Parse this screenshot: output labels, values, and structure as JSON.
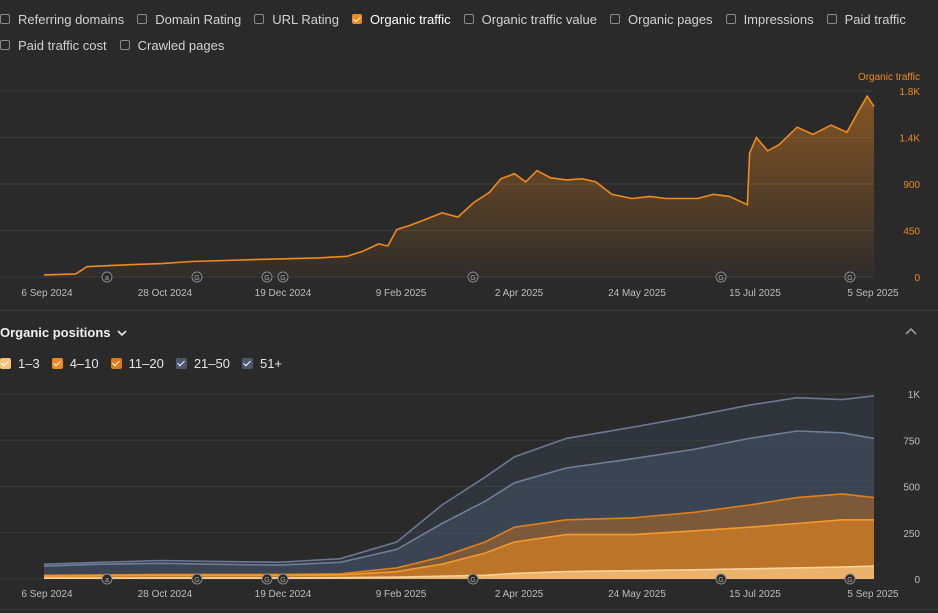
{
  "metrics": {
    "row1": [
      {
        "label": "Referring domains",
        "checked": false,
        "name": "referring-domains"
      },
      {
        "label": "Domain Rating",
        "checked": false,
        "name": "domain-rating"
      },
      {
        "label": "URL Rating",
        "checked": false,
        "name": "url-rating"
      },
      {
        "label": "Organic traffic",
        "checked": true,
        "name": "organic-traffic"
      },
      {
        "label": "Organic traffic value",
        "checked": false,
        "name": "organic-traffic-value"
      },
      {
        "label": "Organic pages",
        "checked": false,
        "name": "organic-pages"
      },
      {
        "label": "Impressions",
        "checked": false,
        "name": "impressions"
      },
      {
        "label": "Paid traffic",
        "checked": false,
        "name": "paid-traffic"
      }
    ],
    "row2": [
      {
        "label": "Paid traffic cost",
        "checked": false,
        "name": "paid-traffic-cost"
      },
      {
        "label": "Crawled pages",
        "checked": false,
        "name": "crawled-pages"
      }
    ]
  },
  "positions": {
    "title": "Organic positions",
    "legend": [
      {
        "label": "1–3",
        "color": "#f6c27a"
      },
      {
        "label": "4–10",
        "color": "#f08a1c"
      },
      {
        "label": "11–20",
        "color": "#e07a14"
      },
      {
        "label": "21–50",
        "color": "#4a5870"
      },
      {
        "label": "51+",
        "color": "#4a5870"
      }
    ]
  },
  "chart_data": [
    {
      "type": "area",
      "title": "",
      "series_label": "Organic traffic",
      "color": "#f08a1c",
      "x_ticks": [
        "6 Sep 2024",
        "28 Oct 2024",
        "19 Dec 2024",
        "9 Feb 2025",
        "2 Apr 2025",
        "24 May 2025",
        "15 Jul 2025",
        "5 Sep 2025"
      ],
      "y_ticks": [
        "0",
        "450",
        "900",
        "1.4K",
        "1.8K"
      ],
      "ylim": [
        0,
        1800
      ],
      "annotations": [
        "a",
        "G",
        "G",
        "G",
        "G",
        "G",
        "G"
      ],
      "series": [
        {
          "name": "Organic traffic",
          "x": [
            "2024-09-06",
            "2024-09-20",
            "2024-09-25",
            "2024-10-05",
            "2024-10-15",
            "2024-10-28",
            "2024-11-10",
            "2024-11-25",
            "2024-12-10",
            "2024-12-19",
            "2025-01-05",
            "2025-01-18",
            "2025-01-25",
            "2025-02-01",
            "2025-02-05",
            "2025-02-09",
            "2025-02-15",
            "2025-02-22",
            "2025-03-01",
            "2025-03-08",
            "2025-03-15",
            "2025-03-22",
            "2025-03-27",
            "2025-04-02",
            "2025-04-07",
            "2025-04-12",
            "2025-04-18",
            "2025-04-25",
            "2025-05-02",
            "2025-05-08",
            "2025-05-15",
            "2025-05-24",
            "2025-06-01",
            "2025-06-08",
            "2025-06-15",
            "2025-06-22",
            "2025-06-29",
            "2025-07-06",
            "2025-07-12",
            "2025-07-14",
            "2025-07-15",
            "2025-07-18",
            "2025-07-23",
            "2025-07-28",
            "2025-08-05",
            "2025-08-12",
            "2025-08-20",
            "2025-08-27",
            "2025-09-01",
            "2025-09-05",
            "2025-09-08"
          ],
          "values": [
            20,
            30,
            100,
            110,
            120,
            130,
            150,
            160,
            170,
            175,
            185,
            200,
            250,
            320,
            300,
            460,
            500,
            560,
            620,
            580,
            720,
            820,
            950,
            1000,
            920,
            1030,
            960,
            940,
            950,
            920,
            800,
            760,
            780,
            760,
            760,
            760,
            800,
            780,
            720,
            700,
            1200,
            1350,
            1220,
            1280,
            1450,
            1380,
            1470,
            1400,
            1600,
            1750,
            1650
          ]
        }
      ]
    },
    {
      "type": "area",
      "title": "",
      "x_ticks": [
        "6 Sep 2024",
        "28 Oct 2024",
        "19 Dec 2024",
        "9 Feb 2025",
        "2 Apr 2025",
        "24 May 2025",
        "15 Jul 2025",
        "5 Sep 2025"
      ],
      "y_ticks": [
        "0",
        "250",
        "500",
        "750",
        "1K"
      ],
      "ylim": [
        0,
        1000
      ],
      "stacked": true,
      "annotations": [
        "a",
        "G",
        "G",
        "G",
        "G",
        "G",
        "G"
      ],
      "x": [
        "2024-09-06",
        "2024-10-01",
        "2024-10-28",
        "2024-11-20",
        "2024-12-19",
        "2025-01-15",
        "2025-02-09",
        "2025-03-01",
        "2025-03-20",
        "2025-04-02",
        "2025-04-25",
        "2025-05-24",
        "2025-06-20",
        "2025-07-15",
        "2025-08-05",
        "2025-08-25",
        "2025-09-08"
      ],
      "series": [
        {
          "name": "1–3",
          "values": [
            5,
            5,
            6,
            6,
            6,
            7,
            10,
            15,
            20,
            30,
            40,
            45,
            50,
            55,
            60,
            65,
            70
          ]
        },
        {
          "name": "4–10",
          "values": [
            15,
            18,
            20,
            20,
            20,
            22,
            40,
            80,
            140,
            200,
            240,
            240,
            260,
            280,
            300,
            320,
            320
          ]
        },
        {
          "name": "11–20",
          "values": [
            20,
            22,
            25,
            25,
            25,
            28,
            60,
            120,
            200,
            280,
            320,
            330,
            360,
            400,
            440,
            460,
            440
          ]
        },
        {
          "name": "21–50",
          "values": [
            70,
            80,
            85,
            80,
            75,
            90,
            160,
            300,
            420,
            520,
            600,
            650,
            700,
            760,
            800,
            790,
            760
          ]
        },
        {
          "name": "51+",
          "values": [
            80,
            90,
            100,
            95,
            90,
            110,
            200,
            400,
            550,
            660,
            760,
            820,
            880,
            940,
            980,
            970,
            990
          ]
        }
      ]
    }
  ]
}
